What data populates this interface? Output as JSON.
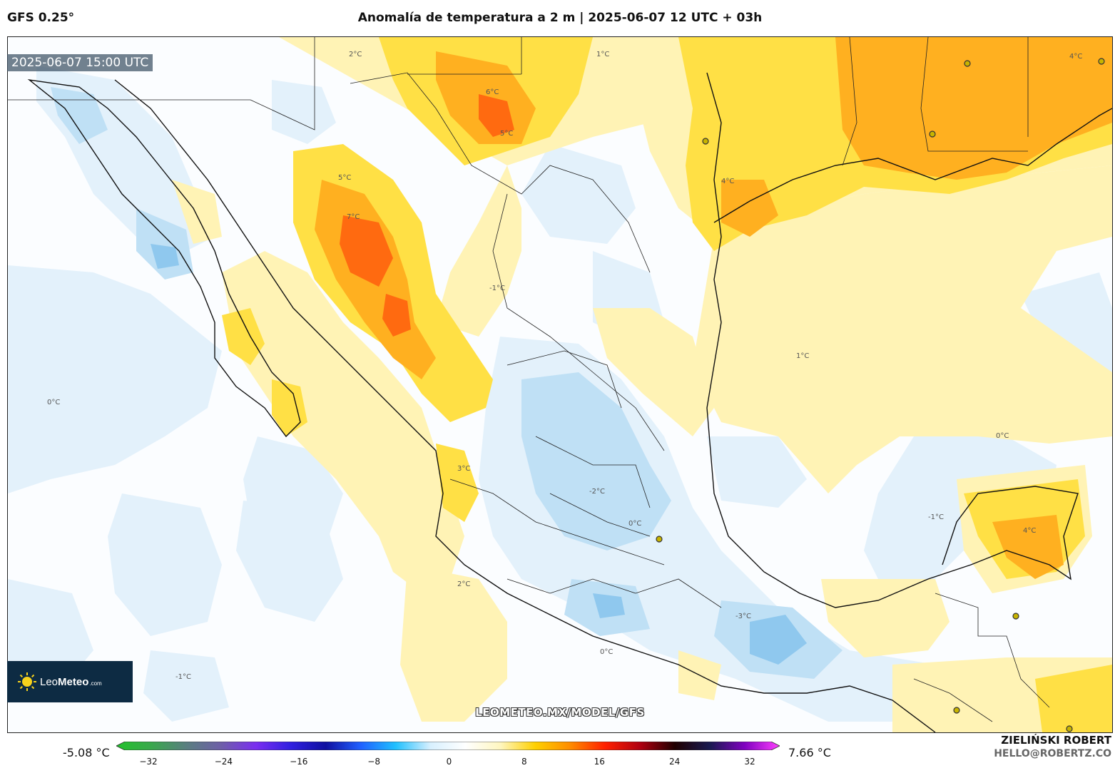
{
  "header": {
    "model": "GFS 0.25°",
    "title": "Anomalía de temperatura a 2 m | 2025-06-07 12 UTC + 03h"
  },
  "map": {
    "valid_time": "2025-06-07 15:00 UTC",
    "website": "LEOMETEO.MX/MODEL/GFS",
    "logo": {
      "name_light": "Leo",
      "name_bold": "Meteo",
      "suffix": ".com"
    },
    "contour_labels": [
      "0°C",
      "1°C",
      "2°C",
      "3°C",
      "4°C",
      "5°C",
      "6°C",
      "7°C",
      "-1°C",
      "-2°C",
      "-3°C"
    ]
  },
  "colorbar": {
    "min_label": "-5.08 °C",
    "max_label": "7.66 °C",
    "ticks": [
      "−32",
      "−24",
      "−16",
      "−8",
      "0",
      "8",
      "16",
      "24",
      "32"
    ],
    "colors": [
      "#22c22c",
      "#3aa84c",
      "#5a7f80",
      "#6e5fa8",
      "#7a2ef0",
      "#3020e0",
      "#1010a0",
      "#2060ff",
      "#20c0ff",
      "#d8f0ff",
      "#ffffff",
      "#fff6c0",
      "#ffd000",
      "#ff8c00",
      "#ff2000",
      "#b00010",
      "#200000",
      "#1a1a50",
      "#8000c0",
      "#ff40ff"
    ]
  },
  "credits": {
    "author": "ZIELIŃSKI ROBERT",
    "email": "HELLO@ROBERTZ.CO"
  }
}
